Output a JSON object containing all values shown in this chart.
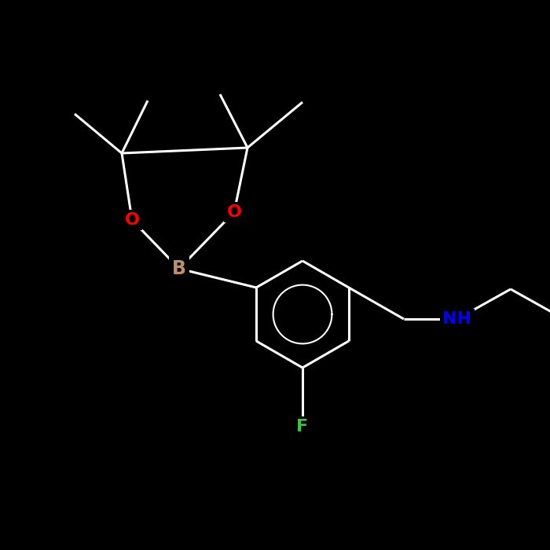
{
  "bg_color": "#000000",
  "bond_color": "#ffffff",
  "bond_lw": 2.2,
  "atom_colors": {
    "O": "#ff0000",
    "N": "#0000ee",
    "B": "#bc8f6f",
    "F": "#33cc33"
  },
  "font_size_atom": 16,
  "font_size_small": 13
}
